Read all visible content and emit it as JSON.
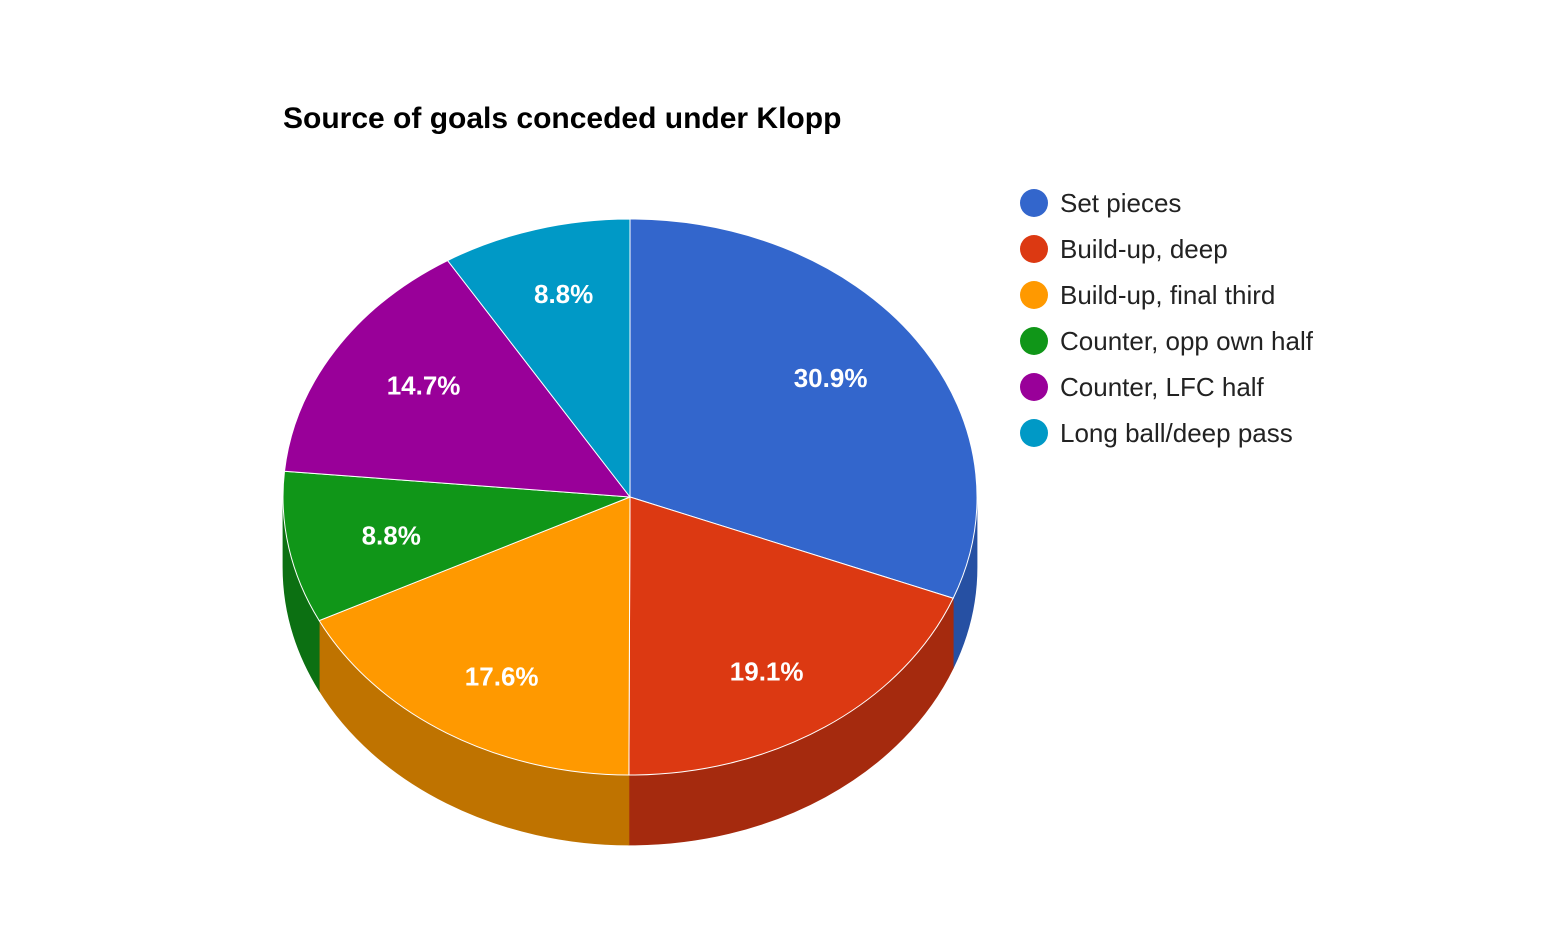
{
  "chart_data": {
    "type": "pie",
    "title": "Source of goals conceded under Klopp",
    "three_d": true,
    "legend_position": "right",
    "slices": [
      {
        "label": "Set pieces",
        "value": 30.9,
        "display": "30.9%",
        "color": "#3366cc",
        "side_color": "#2650a3"
      },
      {
        "label": "Build-up, deep",
        "value": 19.1,
        "display": "19.1%",
        "color": "#dc3912",
        "side_color": "#a52a0e"
      },
      {
        "label": "Build-up, final third",
        "value": 17.6,
        "display": "17.6%",
        "color": "#ff9900",
        "side_color": "#bf7300"
      },
      {
        "label": "Counter, opp own half",
        "value": 8.8,
        "display": "8.8%",
        "color": "#109618",
        "side_color": "#0c7012"
      },
      {
        "label": "Counter, LFC half",
        "value": 14.7,
        "display": "14.7%",
        "color": "#990099",
        "side_color": "#730073"
      },
      {
        "label": "Long ball/deep pass",
        "value": 8.8,
        "display": "8.8%",
        "color": "#0099c6",
        "side_color": "#007394"
      }
    ]
  }
}
